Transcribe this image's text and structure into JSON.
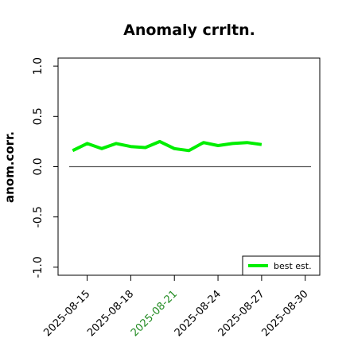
{
  "chart_data": {
    "type": "line",
    "title": "Anomaly crrltn.",
    "xlabel": "",
    "ylabel": "anom.corr.",
    "x": [
      "2025-08-14",
      "2025-08-15",
      "2025-08-16",
      "2025-08-17",
      "2025-08-18",
      "2025-08-19",
      "2025-08-20",
      "2025-08-21",
      "2025-08-22",
      "2025-08-23",
      "2025-08-24",
      "2025-08-25",
      "2025-08-26",
      "2025-08-27"
    ],
    "series": [
      {
        "name": "best est.",
        "color": "#00ee00",
        "values": [
          0.16,
          0.23,
          0.18,
          0.23,
          0.2,
          0.19,
          0.25,
          0.18,
          0.16,
          0.24,
          0.21,
          0.23,
          0.24,
          0.22
        ]
      }
    ],
    "reference_line": {
      "y": 0.0,
      "color": "#555555"
    },
    "ylim": [
      -1.08,
      1.08
    ],
    "yticks": [
      -1.0,
      -0.5,
      0.0,
      0.5,
      1.0
    ],
    "ytick_labels": [
      "-1.0",
      "-0.5",
      "0.0",
      "0.5",
      "1.0"
    ],
    "xlim": [
      "2025-08-13",
      "2025-08-31"
    ],
    "xticks": [
      "2025-08-15",
      "2025-08-18",
      "2025-08-21",
      "2025-08-24",
      "2025-08-27",
      "2025-08-30"
    ],
    "xtick_labels": [
      "2025-08-15",
      "2025-08-18",
      "2025-08-21",
      "2025-08-24",
      "2025-08-27",
      "2025-08-30"
    ],
    "xtick_colors": [
      "#000000",
      "#000000",
      "#228b22",
      "#000000",
      "#000000",
      "#000000"
    ],
    "legend": {
      "position": "bottom-right",
      "entries": [
        "best est."
      ]
    },
    "grid": false
  }
}
